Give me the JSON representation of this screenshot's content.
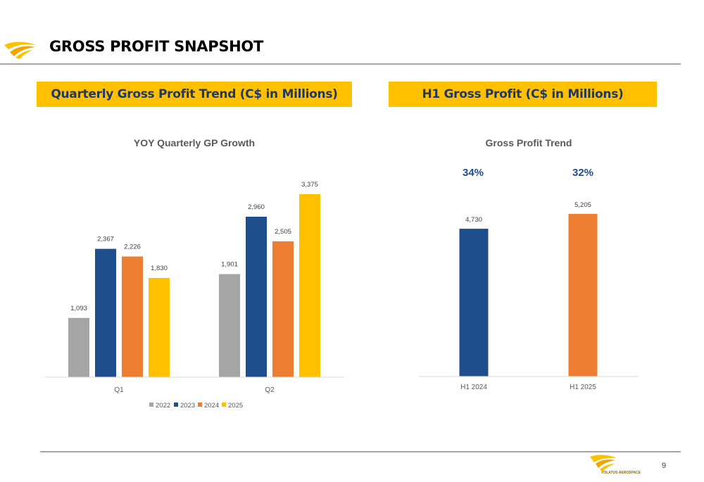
{
  "header": {
    "title": "GROSS PROFIT SNAPSHOT",
    "logo_icon": "wing-logo-icon"
  },
  "banners": {
    "left": "Quarterly Gross Profit Trend (C$ in Millions)",
    "right": "H1 Gross Profit (C$ in Millions)"
  },
  "colors": {
    "accent_yellow": "#ffc000",
    "navy": "#1f4e8c",
    "orange": "#ed7d31",
    "grey": "#a5a5a5",
    "title_navy": "#1f3864"
  },
  "chart_data": [
    {
      "type": "bar",
      "title": "YOY Quarterly GP Growth",
      "xlabel": "",
      "ylabel": "",
      "categories": [
        "Q1",
        "Q2"
      ],
      "series": [
        {
          "name": "2022",
          "color": "#a5a5a5",
          "values": [
            1093,
            1901
          ],
          "labels": [
            "1,093",
            "1,901"
          ]
        },
        {
          "name": "2023",
          "color": "#1f4e8c",
          "values": [
            2367,
            2960
          ],
          "labels": [
            "2,367",
            "2,960"
          ]
        },
        {
          "name": "2024",
          "color": "#ed7d31",
          "values": [
            2226,
            2505
          ],
          "labels": [
            "2,226",
            "2,505"
          ]
        },
        {
          "name": "2025",
          "color": "#ffc000",
          "values": [
            1830,
            3375
          ],
          "labels": [
            "1,830",
            "3,375"
          ]
        }
      ],
      "ylim": [
        0,
        3375
      ],
      "grid": false,
      "legend": "bottom"
    },
    {
      "type": "bar",
      "title": "Gross Profit Trend",
      "xlabel": "",
      "ylabel": "",
      "categories": [
        "H1 2024",
        "H1 2025"
      ],
      "values": [
        4730,
        5205
      ],
      "labels": [
        "4,730",
        "5,205"
      ],
      "colors": [
        "#1f4e8c",
        "#ed7d31"
      ],
      "margins": [
        "34%",
        "32%"
      ],
      "ylim": [
        0,
        5205
      ],
      "grid": false,
      "legend": "none"
    }
  ],
  "footer": {
    "logo_text": "VOLATUS AEROSPACE",
    "page_number": "9"
  }
}
